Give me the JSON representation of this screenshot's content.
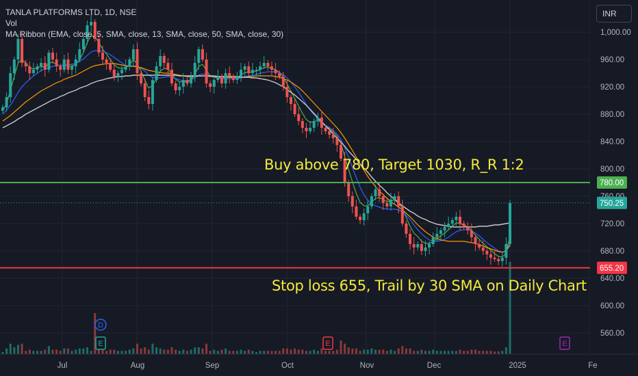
{
  "legend": {
    "symbol": "TANLA PLATFORMS LTD, 1D, NSE",
    "volume": "Vol",
    "ribbon": "MA Ribbon (EMA, close, 5, SMA, close, 13, SMA, close, 50, SMA, close, 30)"
  },
  "currency": "INR",
  "annotations": {
    "buy": "Buy above 780, Target 1030, R_R 1:2",
    "stop": "Stop loss 655, Trail by 30 SMA on Daily Chart"
  },
  "price_tags": {
    "resistance": "780.00",
    "last": "750.25",
    "support": "655.20"
  },
  "colors": {
    "background": "#161a25",
    "up": "#26a69a",
    "down": "#ef5350",
    "resistance_line": "#4caf50",
    "support_line": "#f23645",
    "ema5": "#4caf50",
    "sma13": "#2962ff",
    "sma30": "#ff9800",
    "sma50": "#c8c8c8",
    "annotation": "#f5ea3a"
  },
  "events": [
    {
      "type": "dividend",
      "glyph": "D",
      "date": "Jul 17"
    },
    {
      "type": "earnings",
      "glyph": "E",
      "date": "Jul 17"
    },
    {
      "type": "earnings",
      "glyph": "E",
      "date": "Oct 23"
    },
    {
      "type": "earnings",
      "glyph": "E",
      "date": "Jan 2025"
    }
  ],
  "chart_data": {
    "type": "candlestick",
    "ylim": [
      540,
      1020
    ],
    "y_ticks": [
      "1,000.00",
      "960.00",
      "920.00",
      "880.00",
      "840.00",
      "800.00",
      "760.00",
      "720.00",
      "680.00",
      "640.00",
      "600.00",
      "560.00"
    ],
    "x_ticks": [
      "Jul",
      "Aug",
      "Sep",
      "Oct",
      "Nov",
      "Dec",
      "2025",
      "Fe"
    ],
    "horizontal_levels": [
      {
        "value": 780.0,
        "label": "780.00"
      },
      {
        "value": 655.2,
        "label": "655.20"
      },
      {
        "value": 750.25,
        "label": "750.25",
        "dotted": true
      }
    ],
    "series": [
      {
        "name": "Price",
        "values": [
          890,
          905,
          940,
          960,
          990,
          955,
          950,
          940,
          945,
          950,
          955,
          945,
          970,
          960,
          950,
          945,
          960,
          945,
          950,
          960,
          975,
          990,
          1010,
          1015,
          990,
          970,
          960,
          955,
          945,
          935,
          940,
          945,
          950,
          960,
          975,
          940,
          925,
          905,
          895,
          930,
          950,
          965,
          955,
          945,
          925,
          915,
          920,
          930,
          925,
          935,
          955,
          975,
          960,
          925,
          920,
          930,
          935,
          925,
          940,
          935,
          930,
          935,
          945,
          950,
          940,
          945,
          945,
          950,
          955,
          950,
          945,
          940,
          935,
          920,
          905,
          895,
          880,
          870,
          860,
          855,
          860,
          870,
          875,
          860,
          855,
          850,
          845,
          835,
          815,
          780,
          760,
          745,
          730,
          725,
          735,
          745,
          760,
          770,
          760,
          750,
          745,
          755,
          760,
          745,
          720,
          705,
          690,
          685,
          690,
          680,
          685,
          690,
          700,
          705,
          710,
          715,
          720,
          725,
          730,
          720,
          715,
          710,
          700,
          690,
          685,
          680,
          675,
          670,
          668,
          665,
          670,
          690,
          750
        ]
      },
      {
        "name": "EMA 5",
        "values": [
          885,
          895,
          915,
          935,
          955,
          960,
          955,
          948,
          946,
          948,
          950,
          948,
          955,
          956,
          953,
          950,
          953,
          950,
          950,
          953,
          960,
          970,
          985,
          995,
          993,
          985,
          975,
          968,
          960,
          952,
          948,
          947,
          948,
          952,
          960,
          953,
          943,
          930,
          918,
          922,
          932,
          943,
          947,
          946,
          939,
          931,
          927,
          928,
          927,
          930,
          938,
          950,
          953,
          944,
          936,
          934,
          934,
          931,
          934,
          934,
          933,
          934,
          937,
          941,
          941,
          942,
          943,
          945,
          948,
          949,
          947,
          945,
          941,
          934,
          924,
          914,
          903,
          892,
          881,
          872,
          868,
          869,
          871,
          867,
          863,
          859,
          854,
          848,
          837,
          818,
          799,
          781,
          764,
          751,
          746,
          746,
          751,
          757,
          758,
          755,
          752,
          753,
          755,
          752,
          741,
          729,
          716,
          706,
          701,
          694,
          691,
          691,
          694,
          698,
          702,
          706,
          711,
          716,
          721,
          720,
          718,
          715,
          710,
          703,
          697,
          691,
          686,
          681,
          676,
          672,
          671,
          677,
          702
        ]
      },
      {
        "name": "SMA 13",
        "values": [
          880,
          886,
          893,
          902,
          912,
          920,
          926,
          931,
          936,
          940,
          944,
          946,
          948,
          950,
          951,
          951,
          952,
          952,
          953,
          954,
          957,
          961,
          966,
          971,
          973,
          973,
          972,
          970,
          967,
          963,
          959,
          955,
          951,
          950,
          951,
          950,
          947,
          943,
          937,
          934,
          933,
          933,
          934,
          935,
          934,
          932,
          930,
          929,
          929,
          930,
          933,
          937,
          939,
          938,
          936,
          934,
          933,
          932,
          932,
          932,
          932,
          932,
          933,
          935,
          936,
          937,
          938,
          940,
          941,
          942,
          942,
          942,
          941,
          938,
          933,
          927,
          920,
          912,
          903,
          894,
          886,
          879,
          873,
          868,
          864,
          860,
          856,
          851,
          843,
          831,
          817,
          802,
          787,
          773,
          762,
          754,
          749,
          746,
          744,
          742,
          741,
          741,
          741,
          740,
          737,
          732,
          726,
          718,
          711,
          705,
          700,
          696,
          694,
          694,
          695,
          697,
          700,
          704,
          708,
          710,
          711,
          711,
          709,
          706,
          702,
          697,
          692,
          688,
          684,
          680,
          678,
          679,
          688
        ]
      },
      {
        "name": "SMA 30",
        "values": [
          870,
          874,
          878,
          883,
          888,
          893,
          898,
          902,
          906,
          910,
          914,
          917,
          920,
          923,
          926,
          928,
          931,
          933,
          935,
          937,
          940,
          943,
          946,
          949,
          951,
          952,
          953,
          954,
          954,
          954,
          953,
          952,
          951,
          950,
          950,
          949,
          948,
          946,
          944,
          943,
          942,
          941,
          940,
          940,
          939,
          938,
          937,
          936,
          935,
          935,
          935,
          936,
          936,
          936,
          935,
          935,
          934,
          934,
          934,
          934,
          934,
          934,
          934,
          934,
          935,
          935,
          936,
          936,
          936,
          936,
          936,
          935,
          934,
          932,
          930,
          927,
          923,
          919,
          914,
          908,
          902,
          896,
          890,
          884,
          878,
          872,
          866,
          860,
          853,
          845,
          836,
          827,
          817,
          807,
          798,
          789,
          781,
          774,
          768,
          762,
          757,
          752,
          748,
          744,
          740,
          735,
          730,
          724,
          718,
          713,
          708,
          704,
          700,
          698,
          696,
          695,
          694,
          694,
          694,
          694,
          694,
          693,
          692,
          691,
          689,
          687,
          685,
          683,
          681,
          679,
          678,
          680,
          690
        ]
      },
      {
        "name": "SMA 50",
        "values": [
          860,
          863,
          866,
          869,
          873,
          876,
          880,
          883,
          886,
          889,
          892,
          895,
          898,
          901,
          903,
          906,
          908,
          911,
          913,
          915,
          918,
          920,
          922,
          925,
          927,
          929,
          930,
          932,
          933,
          934,
          935,
          935,
          936,
          936,
          937,
          937,
          937,
          937,
          937,
          937,
          937,
          937,
          937,
          937,
          937,
          937,
          936,
          936,
          936,
          936,
          936,
          936,
          936,
          936,
          936,
          936,
          935,
          935,
          935,
          935,
          935,
          935,
          934,
          934,
          934,
          933,
          933,
          932,
          931,
          930,
          928,
          926,
          923,
          920,
          916,
          912,
          908,
          903,
          898,
          893,
          887,
          881,
          875,
          869,
          863,
          857,
          851,
          845,
          839,
          833,
          826,
          820,
          814,
          807,
          801,
          795,
          788,
          782,
          776,
          771,
          765,
          760,
          755,
          750,
          746,
          742,
          738,
          735,
          731,
          728,
          726,
          723,
          721,
          719,
          718,
          717,
          716,
          715,
          715,
          715,
          715,
          715,
          715,
          715,
          716,
          716,
          716,
          717,
          718,
          718,
          719,
          720,
          721
        ]
      }
    ]
  }
}
